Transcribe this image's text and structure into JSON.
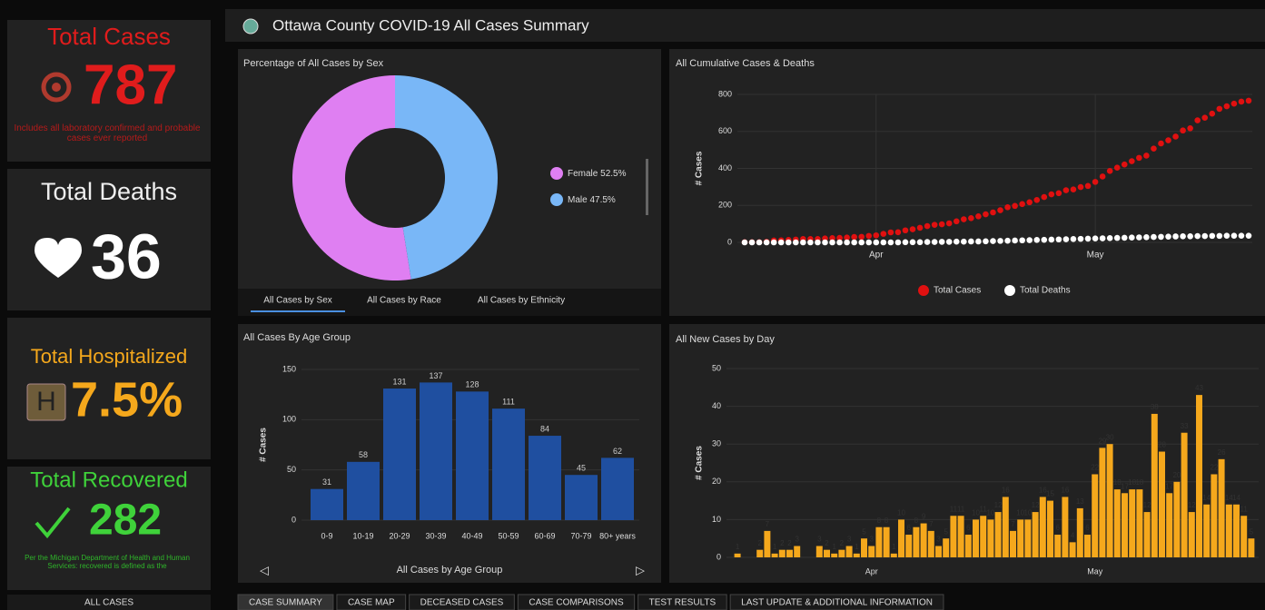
{
  "header": {
    "title": "Ottawa County COVID-19 All Cases Summary"
  },
  "sidebar": {
    "cards": [
      {
        "label": "Total Cases",
        "value": 787,
        "note": "Includes all laboratory confirmed and probable cases ever reported"
      },
      {
        "label": "Total Deaths",
        "value": 36
      },
      {
        "label": "Total Hospitalized",
        "value": "7.5%"
      },
      {
        "label": "Total Recovered",
        "value": 282,
        "note": "Per the Michigan Department of Health and Human Services: recovered is defined as the"
      }
    ],
    "nav": "ALL CASES"
  },
  "tabs": [
    "CASE SUMMARY",
    "CASE MAP",
    "DECEASED CASES",
    "CASE COMPARISONS",
    "TEST RESULTS",
    "LAST UPDATE & ADDITIONAL INFORMATION"
  ],
  "pie_tabs": [
    "All Cases by Sex",
    "All Cases by Race",
    "All Cases by Ethnicity"
  ],
  "chart_data": [
    {
      "type": "pie",
      "title": "Percentage of All Cases by Sex",
      "categories": [
        "Female",
        "Male"
      ],
      "values": [
        52.5,
        47.5
      ],
      "value_labels": [
        "52.5%",
        "47.5%"
      ],
      "colors": [
        "#df7ff2",
        "#79b7f7"
      ]
    },
    {
      "type": "line",
      "title": "All Cumulative Cases & Deaths",
      "y_label": "# Cases",
      "categories": [
        null,
        null,
        null,
        null,
        null,
        null,
        null,
        null,
        null,
        null,
        null,
        null,
        null,
        null,
        null,
        null,
        null,
        null,
        "Apr",
        null,
        null,
        null,
        null,
        null,
        null,
        null,
        null,
        null,
        null,
        null,
        null,
        null,
        null,
        null,
        null,
        null,
        null,
        null,
        null,
        null,
        null,
        null,
        null,
        null,
        null,
        null,
        null,
        null,
        "May",
        null,
        null,
        null,
        null,
        null,
        null,
        null,
        null,
        null,
        null,
        null,
        null,
        null,
        null,
        null,
        null,
        null,
        null,
        null,
        null,
        null
      ],
      "ylim": [
        0,
        800
      ],
      "yticks": [
        0,
        200,
        400,
        600,
        800
      ],
      "grid": true,
      "legend": "bottom",
      "series": [
        {
          "name": "Total Cases",
          "color": "#e01010",
          "values": [
            1,
            1,
            1,
            3,
            10,
            11,
            13,
            15,
            18,
            18,
            18,
            21,
            23,
            24,
            26,
            29,
            30,
            35,
            38,
            46,
            54,
            55,
            65,
            71,
            79,
            88,
            95,
            98,
            103,
            114,
            125,
            131,
            141,
            152,
            162,
            174,
            190,
            197,
            207,
            217,
            229,
            245,
            260,
            266,
            282,
            286,
            299,
            305,
            327,
            356,
            386,
            404,
            421,
            439,
            457,
            469,
            507,
            535,
            552,
            572,
            605,
            617,
            660,
            674,
            696,
            722,
            736,
            750,
            761,
            766
          ]
        },
        {
          "name": "Total Deaths",
          "color": "#ffffff",
          "values": [
            0,
            0,
            0,
            0,
            0,
            0,
            0,
            0,
            0,
            0,
            0,
            0,
            0,
            0,
            0,
            0,
            0,
            0,
            0,
            0,
            0,
            0,
            1,
            1,
            1,
            2,
            2,
            3,
            3,
            4,
            4,
            5,
            5,
            6,
            7,
            8,
            9,
            10,
            11,
            12,
            13,
            14,
            15,
            16,
            17,
            18,
            19,
            20,
            21,
            22,
            23,
            24,
            25,
            26,
            27,
            28,
            29,
            30,
            31,
            32,
            33,
            33,
            34,
            34,
            35,
            35,
            36,
            36,
            36,
            36
          ]
        }
      ]
    },
    {
      "type": "bar",
      "title": "All Cases By Age Group",
      "x_label": "All Cases by Age Group",
      "y_label": "# Cases",
      "categories": [
        "0-9",
        "10-19",
        "20-29",
        "30-39",
        "40-49",
        "50-59",
        "60-69",
        "70-79",
        "80+ years"
      ],
      "values": [
        31,
        58,
        131,
        137,
        128,
        111,
        84,
        45,
        62
      ],
      "color": "#1f4fa0",
      "ylim": [
        0,
        150
      ],
      "yticks": [
        0,
        50,
        100,
        150
      ]
    },
    {
      "type": "bar",
      "title": "All New Cases by Day",
      "y_label": "# Cases",
      "categories": [
        null,
        null,
        null,
        null,
        null,
        null,
        null,
        null,
        null,
        null,
        null,
        null,
        null,
        null,
        null,
        null,
        null,
        null,
        "Apr",
        null,
        null,
        null,
        null,
        null,
        null,
        null,
        null,
        null,
        null,
        null,
        null,
        null,
        null,
        null,
        null,
        null,
        null,
        null,
        null,
        null,
        null,
        null,
        null,
        null,
        null,
        null,
        null,
        null,
        "May",
        null,
        null,
        null,
        null,
        null,
        null,
        null,
        null,
        null,
        null,
        null,
        null,
        null,
        null,
        null,
        null,
        null,
        null,
        null,
        null,
        null
      ],
      "values": [
        1,
        0,
        0,
        2,
        7,
        1,
        2,
        2,
        3,
        0,
        0,
        3,
        2,
        1,
        2,
        3,
        1,
        5,
        3,
        8,
        8,
        1,
        10,
        6,
        8,
        9,
        7,
        3,
        5,
        11,
        11,
        6,
        10,
        11,
        10,
        12,
        16,
        7,
        10,
        10,
        12,
        16,
        15,
        6,
        16,
        4,
        13,
        6,
        22,
        29,
        30,
        18,
        17,
        18,
        18,
        12,
        38,
        28,
        17,
        20,
        33,
        12,
        43,
        14,
        22,
        26,
        14,
        14,
        11,
        5
      ],
      "color": "#f5a81c",
      "ylim": [
        0,
        50
      ],
      "yticks": [
        0,
        10,
        20,
        30,
        40,
        50
      ]
    }
  ]
}
